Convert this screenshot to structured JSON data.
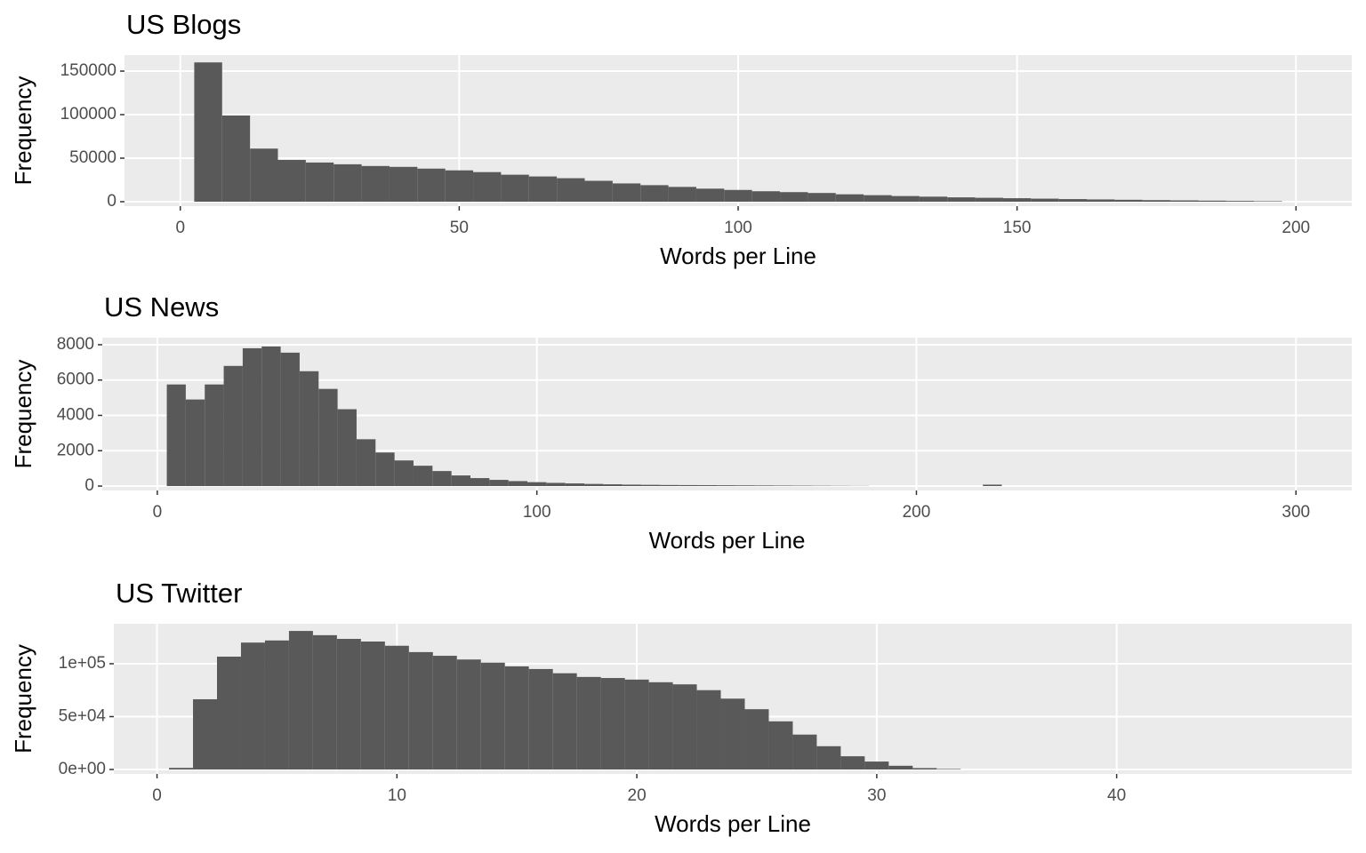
{
  "chart_data": [
    {
      "type": "histogram",
      "title": "US Blogs",
      "x_label": "Words per Line",
      "y_label": "Frequency",
      "bins": [
        2.5,
        7.5,
        12.5,
        17.5,
        22.5,
        27.5,
        32.5,
        37.5,
        42.5,
        47.5,
        52.5,
        57.5,
        62.5,
        67.5,
        72.5,
        77.5,
        82.5,
        87.5,
        92.5,
        97.5,
        102.5,
        107.5,
        112.5,
        117.5,
        122.5,
        127.5,
        132.5,
        137.5,
        142.5,
        147.5,
        152.5,
        157.5,
        162.5,
        167.5,
        172.5,
        177.5,
        182.5,
        187.5,
        192.5,
        197.5
      ],
      "values": [
        160000,
        99000,
        61000,
        48000,
        45000,
        43000,
        41000,
        40000,
        38000,
        36000,
        34000,
        31000,
        29000,
        27000,
        24000,
        21000,
        19000,
        17000,
        15000,
        13500,
        12000,
        11000,
        10000,
        8500,
        7500,
        6500,
        5800,
        5000,
        4500,
        4000,
        3500,
        3000,
        2600,
        2200,
        1800,
        1500,
        1200,
        900,
        600
      ],
      "color": "#595959",
      "xlim": [
        -10,
        210
      ],
      "ylim": [
        -5100,
        168400
      ],
      "xticks": [
        0,
        50,
        100,
        150,
        200
      ],
      "yticks": [
        0,
        50000,
        100000,
        150000
      ],
      "grid": true
    },
    {
      "type": "histogram",
      "title": "US News",
      "x_label": "Words per Line",
      "y_label": "Frequency",
      "bins": [
        2.5,
        7.5,
        12.5,
        17.5,
        22.5,
        27.5,
        32.5,
        37.5,
        42.5,
        47.5,
        52.5,
        57.5,
        62.5,
        67.5,
        72.5,
        77.5,
        82.5,
        87.5,
        92.5,
        97.5,
        102.5,
        107.5,
        112.5,
        117.5,
        122.5,
        127.5,
        132.5,
        137.5,
        142.5,
        147.5,
        152.5,
        157.5,
        162.5,
        167.5,
        172.5,
        177.5,
        182.5,
        187.5,
        192.5,
        197.5,
        202.5,
        207.5,
        212.5,
        217.5,
        222.5
      ],
      "values": [
        5750,
        4900,
        5750,
        6800,
        7800,
        7900,
        7550,
        6500,
        5500,
        4350,
        2650,
        1900,
        1450,
        1150,
        850,
        600,
        450,
        350,
        280,
        220,
        180,
        150,
        120,
        100,
        80,
        70,
        60,
        55,
        50,
        45,
        40,
        35,
        30,
        25,
        20,
        15,
        10,
        0,
        0,
        0,
        0,
        0,
        0,
        80
      ],
      "color": "#595959",
      "xlim": [
        -14.5,
        314.7
      ],
      "ylim": [
        -250,
        8400
      ],
      "xticks": [
        0,
        100,
        200,
        300
      ],
      "yticks": [
        0,
        2000,
        4000,
        6000,
        8000
      ],
      "grid": true
    },
    {
      "type": "histogram",
      "title": "US Twitter",
      "x_label": "Words per Line",
      "y_label": "Frequency",
      "bins": [
        0.5,
        1.5,
        2.5,
        3.5,
        4.5,
        5.5,
        6.5,
        7.5,
        8.5,
        9.5,
        10.5,
        11.5,
        12.5,
        13.5,
        14.5,
        15.5,
        16.5,
        17.5,
        18.5,
        19.5,
        20.5,
        21.5,
        22.5,
        23.5,
        24.5,
        25.5,
        26.5,
        27.5,
        28.5,
        29.5,
        30.5,
        31.5,
        32.5,
        33.5
      ],
      "values": [
        1500,
        66400,
        106700,
        120000,
        122000,
        131000,
        127000,
        123500,
        121000,
        117000,
        111000,
        107500,
        104000,
        101000,
        97500,
        95000,
        91000,
        87500,
        86500,
        85000,
        82500,
        80500,
        75000,
        67000,
        57000,
        45500,
        33000,
        22000,
        12500,
        7500,
        3500,
        1300,
        500
      ],
      "color": "#595959",
      "xlim": [
        -1.8,
        49.8
      ],
      "ylim": [
        -4200,
        137800
      ],
      "xticks": [
        0,
        10,
        20,
        30,
        40
      ],
      "yticks": [
        {
          "value": 0,
          "label": "0e+00"
        },
        {
          "value": 50000,
          "label": "5e+04"
        },
        {
          "value": 100000,
          "label": "1e+05"
        }
      ],
      "grid": true
    }
  ]
}
